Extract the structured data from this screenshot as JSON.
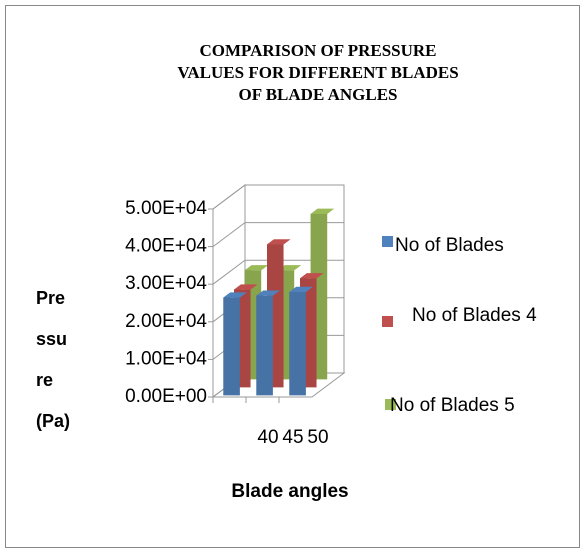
{
  "chart_data": {
    "type": "bar3d",
    "title": "COMPARISON OF PRESSURE VALUES FOR DIFFERENT BLADES OF BLADE ANGLES",
    "x_label": "Blade angles",
    "y_label": "Pressure(Pa)",
    "categories": [
      "40",
      "45",
      "50"
    ],
    "series": [
      {
        "name": "No of Blades",
        "color": "#4f81bd",
        "values": [
          26000,
          26500,
          27500
        ]
      },
      {
        "name": "No of Blades 4",
        "color": "#c0504d",
        "values": [
          26000,
          38000,
          29000
        ]
      },
      {
        "name": "No of Blades 5",
        "color": "#9bbb59",
        "values": [
          29000,
          29000,
          44000
        ]
      }
    ],
    "ylim": [
      0,
      50000
    ],
    "yticks": [
      {
        "value": 0,
        "label": "0.00E+00"
      },
      {
        "value": 10000,
        "label": "1.00E+04"
      },
      {
        "value": 20000,
        "label": "2.00E+04"
      },
      {
        "value": 30000,
        "label": "3.00E+04"
      },
      {
        "value": 40000,
        "label": "4.00E+04"
      },
      {
        "value": 50000,
        "label": "5.00E+04"
      }
    ],
    "grid": true,
    "legend": "right"
  }
}
